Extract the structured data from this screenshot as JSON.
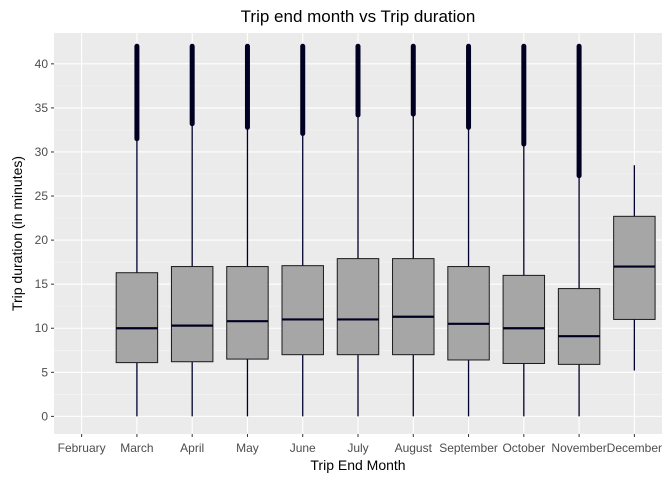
{
  "chart_data": {
    "type": "boxplot",
    "title": "Trip end month vs Trip duration",
    "xlabel": "Trip End Month",
    "ylabel": "Trip duration (in minutes)",
    "ylim": [
      -2,
      43.5
    ],
    "yticks": [
      0,
      5,
      10,
      15,
      20,
      25,
      30,
      35,
      40
    ],
    "categories": [
      "February",
      "March",
      "April",
      "May",
      "June",
      "July",
      "August",
      "September",
      "October",
      "November",
      "December"
    ],
    "boxes": [
      null,
      {
        "min": 0,
        "q1": 6.1,
        "median": 10.0,
        "q3": 16.3,
        "max": 31.5,
        "outliers_from": 31.5,
        "outliers_to": 42
      },
      {
        "min": 0,
        "q1": 6.2,
        "median": 10.3,
        "q3": 17.0,
        "max": 33.2,
        "outliers_from": 33.2,
        "outliers_to": 42
      },
      {
        "min": 0,
        "q1": 6.5,
        "median": 10.8,
        "q3": 17.0,
        "max": 32.8,
        "outliers_from": 32.8,
        "outliers_to": 42
      },
      {
        "min": 0,
        "q1": 7.0,
        "median": 11.0,
        "q3": 17.1,
        "max": 32.1,
        "outliers_from": 32.1,
        "outliers_to": 42
      },
      {
        "min": 0,
        "q1": 7.0,
        "median": 11.0,
        "q3": 17.9,
        "max": 34.2,
        "outliers_from": 34.2,
        "outliers_to": 42
      },
      {
        "min": 0,
        "q1": 7.0,
        "median": 11.3,
        "q3": 17.9,
        "max": 34.3,
        "outliers_from": 34.3,
        "outliers_to": 42
      },
      {
        "min": 0,
        "q1": 6.4,
        "median": 10.5,
        "q3": 17.0,
        "max": 32.8,
        "outliers_from": 32.8,
        "outliers_to": 42
      },
      {
        "min": 0,
        "q1": 6.0,
        "median": 10.0,
        "q3": 16.0,
        "max": 30.9,
        "outliers_from": 30.9,
        "outliers_to": 42
      },
      {
        "min": 0,
        "q1": 5.9,
        "median": 9.1,
        "q3": 14.5,
        "max": 27.3,
        "outliers_from": 27.3,
        "outliers_to": 42
      },
      {
        "min": 5.2,
        "q1": 11.0,
        "median": 17.0,
        "q3": 22.7,
        "max": 28.5,
        "outliers_from": null,
        "outliers_to": null
      }
    ],
    "colors": {
      "panel": "#ebebeb",
      "grid_major": "#ffffff",
      "grid_minor": "#f5f5f5",
      "box_fill": "#a6a6a6",
      "box_stroke": "#1a1a1a",
      "whisker": "#00002e",
      "median": "#000022",
      "outlier": "#000022"
    }
  }
}
